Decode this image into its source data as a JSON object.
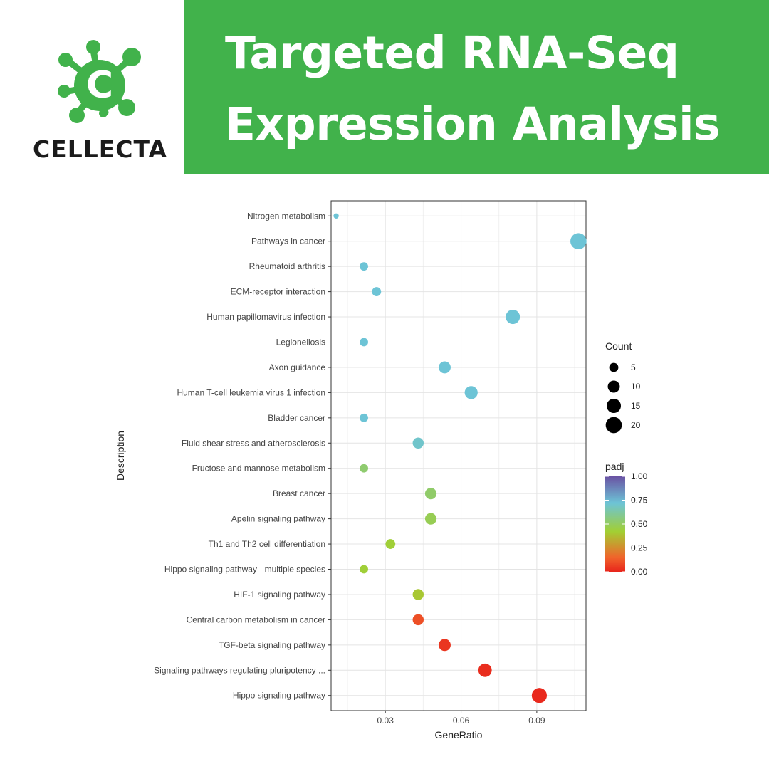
{
  "header": {
    "brand": "CELLECTA",
    "title_line1": "Targeted RNA-Seq",
    "title_line2": "Expression Analysis",
    "brand_color": "#41b24b",
    "logo_icon": "cellecta-c-molecule-icon"
  },
  "chart_data": {
    "type": "scatter",
    "xlabel": "GeneRatio",
    "ylabel": "Description",
    "xlim": [
      0.0085,
      0.1095
    ],
    "x_ticks": [
      0.03,
      0.06,
      0.09
    ],
    "x_tick_labels": [
      "0.03",
      "0.06",
      "0.09"
    ],
    "grid": true,
    "categories": [
      "Nitrogen metabolism",
      "Pathways in cancer",
      "Rheumatoid arthritis",
      "ECM-receptor interaction",
      "Human papillomavirus infection",
      "Legionellosis",
      "Axon guidance",
      "Human T-cell leukemia virus 1 infection",
      "Bladder cancer",
      "Fluid shear stress and atherosclerosis",
      "Fructose and mannose metabolism",
      "Breast cancer",
      "Apelin signaling pathway",
      "Th1 and Th2 cell differentiation",
      "Hippo signaling pathway - multiple species",
      "HIF-1 signaling pathway",
      "Central carbon metabolism in cancer",
      "TGF-beta signaling pathway",
      "Signaling pathways regulating pluripotency ...",
      "Hippo signaling pathway"
    ],
    "x": [
      0.0105,
      0.1065,
      0.0215,
      0.0265,
      0.0805,
      0.0215,
      0.0535,
      0.064,
      0.0215,
      0.043,
      0.0215,
      0.048,
      0.048,
      0.032,
      0.0215,
      0.043,
      0.043,
      0.0535,
      0.0695,
      0.091
    ],
    "count": [
      1,
      20,
      4,
      5,
      15,
      4,
      10,
      12,
      4,
      8,
      4,
      9,
      9,
      6,
      4,
      8,
      8,
      10,
      13,
      17
    ],
    "padj": [
      0.72,
      0.72,
      0.72,
      0.72,
      0.72,
      0.72,
      0.72,
      0.72,
      0.72,
      0.7,
      0.53,
      0.52,
      0.48,
      0.43,
      0.43,
      0.4,
      0.1,
      0.04,
      0.02,
      0.01
    ],
    "legend": {
      "placement": "right",
      "size_title": "Count",
      "size_breaks": [
        5,
        10,
        15,
        20
      ],
      "size_labels": [
        "5",
        "10",
        "15",
        "20"
      ],
      "color_title": "padj",
      "color_breaks": [
        1.0,
        0.75,
        0.5,
        0.25,
        0.0
      ],
      "color_labels": [
        "1.00",
        "0.75",
        "0.50",
        "0.25",
        "0.00"
      ],
      "color_scale": [
        "#e8251c",
        "#f0642b",
        "#a2cf33",
        "#6dc4d6",
        "#6a52a3"
      ]
    }
  }
}
